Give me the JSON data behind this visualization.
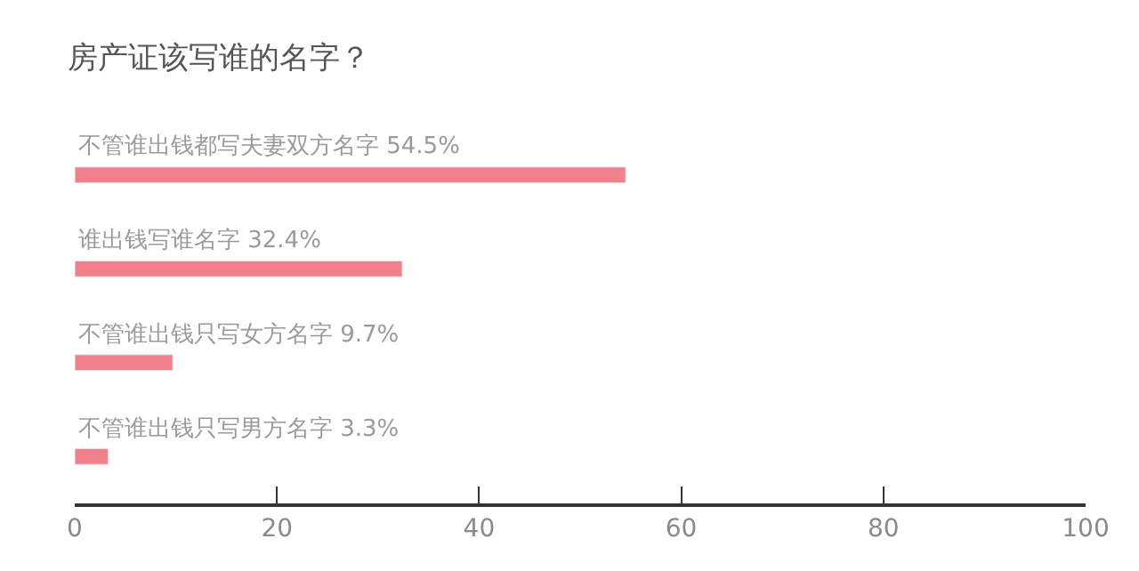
{
  "chart_data": {
    "type": "bar",
    "orientation": "horizontal",
    "title": "房产证该写谁的名字？",
    "categories": [
      "不管谁出钱都写夫妻双方名字",
      "谁出钱写谁名字",
      "不管谁出钱只写女方名字",
      "不管谁出钱只写男方名字"
    ],
    "values": [
      54.5,
      32.4,
      9.7,
      3.3
    ],
    "value_labels": [
      "54.5%",
      "32.4%",
      "9.7%",
      "3.3%"
    ],
    "color": "#f0808a",
    "xlim": [
      0,
      100
    ],
    "xticks": [
      0,
      20,
      40,
      60,
      80,
      100
    ],
    "tick_labels": "x"
  }
}
